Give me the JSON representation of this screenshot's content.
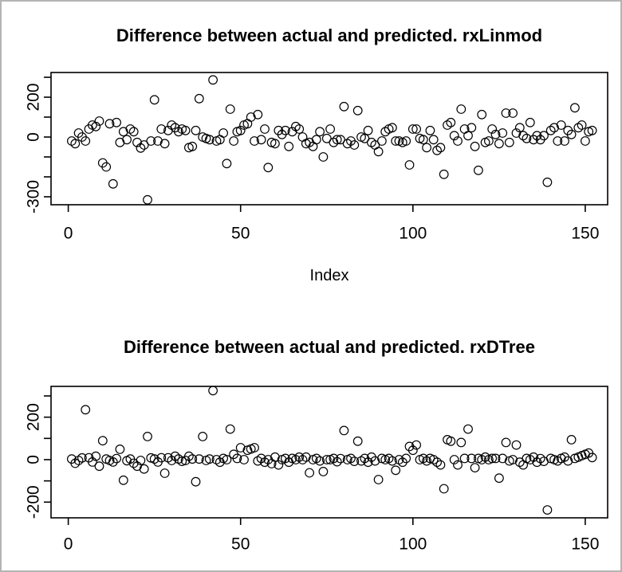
{
  "frame": {
    "background": "#ffffff",
    "border_color": "#b4b4b4"
  },
  "chart_data": [
    {
      "type": "scatter",
      "title": "Difference between actual and predicted. rxLinmod",
      "xlabel": "Index",
      "ylabel": "",
      "marker": "open-circle",
      "marker_color": "#000000",
      "grid": false,
      "x_ticks": [
        0,
        50,
        100,
        150
      ],
      "x_tick_labels": [
        "0",
        "50",
        "100",
        "150"
      ],
      "y_ticks": [
        300,
        200,
        100,
        0,
        -100,
        -200,
        -300
      ],
      "y_tick_labels": [
        "",
        "200",
        "",
        "0",
        "",
        "",
        "-300"
      ],
      "xlim": [
        -5,
        156.5
      ],
      "ylim": [
        -340,
        324
      ],
      "points": [
        [
          1,
          -20
        ],
        [
          2,
          -33
        ],
        [
          3,
          20
        ],
        [
          4,
          0
        ],
        [
          5,
          -20
        ],
        [
          6,
          40
        ],
        [
          7,
          60
        ],
        [
          8,
          53
        ],
        [
          9,
          80
        ],
        [
          10,
          -130
        ],
        [
          11,
          -150
        ],
        [
          12,
          67
        ],
        [
          13,
          -235
        ],
        [
          14,
          73
        ],
        [
          15,
          -27
        ],
        [
          16,
          27
        ],
        [
          17,
          -13
        ],
        [
          18,
          40
        ],
        [
          19,
          27
        ],
        [
          20,
          -27
        ],
        [
          21,
          -55
        ],
        [
          22,
          -40
        ],
        [
          23,
          -315
        ],
        [
          24,
          -20
        ],
        [
          25,
          187
        ],
        [
          26,
          -20
        ],
        [
          27,
          40
        ],
        [
          28,
          -33
        ],
        [
          29,
          33
        ],
        [
          30,
          60
        ],
        [
          31,
          47
        ],
        [
          32,
          27
        ],
        [
          33,
          40
        ],
        [
          34,
          33
        ],
        [
          35,
          -53
        ],
        [
          36,
          -47
        ],
        [
          37,
          33
        ],
        [
          38,
          193
        ],
        [
          39,
          0
        ],
        [
          40,
          -7
        ],
        [
          41,
          -13
        ],
        [
          42,
          287
        ],
        [
          43,
          -20
        ],
        [
          44,
          -13
        ],
        [
          45,
          20
        ],
        [
          46,
          -133
        ],
        [
          47,
          140
        ],
        [
          48,
          -20
        ],
        [
          49,
          27
        ],
        [
          50,
          33
        ],
        [
          51,
          60
        ],
        [
          52,
          67
        ],
        [
          53,
          100
        ],
        [
          54,
          -20
        ],
        [
          55,
          113
        ],
        [
          56,
          -13
        ],
        [
          57,
          40
        ],
        [
          58,
          -153
        ],
        [
          59,
          -27
        ],
        [
          60,
          -33
        ],
        [
          61,
          33
        ],
        [
          62,
          13
        ],
        [
          63,
          33
        ],
        [
          64,
          -47
        ],
        [
          65,
          27
        ],
        [
          66,
          53
        ],
        [
          67,
          40
        ],
        [
          68,
          0
        ],
        [
          69,
          -33
        ],
        [
          70,
          -27
        ],
        [
          71,
          -47
        ],
        [
          72,
          -13
        ],
        [
          73,
          27
        ],
        [
          74,
          -100
        ],
        [
          75,
          -7
        ],
        [
          76,
          40
        ],
        [
          77,
          -27
        ],
        [
          78,
          -13
        ],
        [
          79,
          -13
        ],
        [
          80,
          153
        ],
        [
          81,
          -33
        ],
        [
          82,
          -20
        ],
        [
          83,
          -40
        ],
        [
          84,
          133
        ],
        [
          85,
          0
        ],
        [
          86,
          -7
        ],
        [
          87,
          33
        ],
        [
          88,
          -27
        ],
        [
          89,
          -40
        ],
        [
          90,
          -73
        ],
        [
          91,
          -20
        ],
        [
          92,
          27
        ],
        [
          93,
          40
        ],
        [
          94,
          47
        ],
        [
          95,
          -20
        ],
        [
          96,
          -20
        ],
        [
          97,
          -27
        ],
        [
          98,
          -20
        ],
        [
          99,
          -140
        ],
        [
          100,
          40
        ],
        [
          101,
          40
        ],
        [
          102,
          -7
        ],
        [
          103,
          -13
        ],
        [
          104,
          -53
        ],
        [
          105,
          33
        ],
        [
          106,
          -13
        ],
        [
          107,
          -67
        ],
        [
          108,
          -53
        ],
        [
          109,
          -187
        ],
        [
          110,
          60
        ],
        [
          111,
          73
        ],
        [
          112,
          7
        ],
        [
          113,
          -20
        ],
        [
          114,
          140
        ],
        [
          115,
          40
        ],
        [
          116,
          7
        ],
        [
          117,
          47
        ],
        [
          118,
          -47
        ],
        [
          119,
          -167
        ],
        [
          120,
          113
        ],
        [
          121,
          -27
        ],
        [
          122,
          -20
        ],
        [
          123,
          40
        ],
        [
          124,
          13
        ],
        [
          125,
          -33
        ],
        [
          126,
          20
        ],
        [
          127,
          120
        ],
        [
          128,
          -27
        ],
        [
          129,
          120
        ],
        [
          130,
          20
        ],
        [
          131,
          47
        ],
        [
          132,
          7
        ],
        [
          133,
          -7
        ],
        [
          134,
          73
        ],
        [
          135,
          -13
        ],
        [
          136,
          7
        ],
        [
          137,
          -13
        ],
        [
          138,
          7
        ],
        [
          139,
          -227
        ],
        [
          140,
          33
        ],
        [
          141,
          47
        ],
        [
          142,
          -20
        ],
        [
          143,
          60
        ],
        [
          144,
          -20
        ],
        [
          145,
          33
        ],
        [
          146,
          13
        ],
        [
          147,
          147
        ],
        [
          148,
          47
        ],
        [
          149,
          60
        ],
        [
          150,
          -20
        ],
        [
          151,
          27
        ],
        [
          152,
          33
        ]
      ]
    },
    {
      "type": "scatter",
      "title": "Difference between actual and predicted. rxDTree",
      "xlabel": "",
      "ylabel": "",
      "marker": "open-circle",
      "marker_color": "#000000",
      "grid": false,
      "x_ticks": [
        0,
        50,
        100,
        150
      ],
      "x_tick_labels": [
        "0",
        "50",
        "100",
        "150"
      ],
      "y_ticks": [
        300,
        200,
        100,
        0,
        -100,
        -200
      ],
      "y_tick_labels": [
        "",
        "200",
        "",
        "0",
        "",
        "-200"
      ],
      "xlim": [
        -5,
        156.5
      ],
      "ylim": [
        -274,
        345
      ],
      "points": [
        [
          1,
          3
        ],
        [
          2,
          -17
        ],
        [
          3,
          -4
        ],
        [
          4,
          8
        ],
        [
          5,
          235
        ],
        [
          6,
          9
        ],
        [
          7,
          -11
        ],
        [
          8,
          16
        ],
        [
          9,
          -31
        ],
        [
          10,
          89
        ],
        [
          11,
          3
        ],
        [
          12,
          -4
        ],
        [
          13,
          -11
        ],
        [
          14,
          5
        ],
        [
          15,
          49
        ],
        [
          16,
          -97
        ],
        [
          17,
          -5
        ],
        [
          18,
          3
        ],
        [
          19,
          -17
        ],
        [
          20,
          -31
        ],
        [
          21,
          -4
        ],
        [
          22,
          -44
        ],
        [
          23,
          109
        ],
        [
          24,
          8
        ],
        [
          25,
          3
        ],
        [
          26,
          -11
        ],
        [
          27,
          9
        ],
        [
          28,
          -64
        ],
        [
          29,
          9
        ],
        [
          30,
          -4
        ],
        [
          31,
          16
        ],
        [
          32,
          3
        ],
        [
          33,
          -8
        ],
        [
          34,
          -4
        ],
        [
          35,
          16
        ],
        [
          36,
          3
        ],
        [
          37,
          -104
        ],
        [
          38,
          3
        ],
        [
          39,
          109
        ],
        [
          40,
          -4
        ],
        [
          41,
          3
        ],
        [
          42,
          325
        ],
        [
          43,
          0
        ],
        [
          44,
          -12
        ],
        [
          45,
          6
        ],
        [
          46,
          0
        ],
        [
          47,
          144
        ],
        [
          48,
          25
        ],
        [
          49,
          6
        ],
        [
          50,
          56
        ],
        [
          51,
          0
        ],
        [
          52,
          44
        ],
        [
          53,
          50
        ],
        [
          54,
          56
        ],
        [
          55,
          -6
        ],
        [
          56,
          6
        ],
        [
          57,
          -12
        ],
        [
          58,
          0
        ],
        [
          59,
          -19
        ],
        [
          60,
          12
        ],
        [
          61,
          -25
        ],
        [
          62,
          0
        ],
        [
          63,
          6
        ],
        [
          64,
          -12
        ],
        [
          65,
          6
        ],
        [
          66,
          0
        ],
        [
          67,
          12
        ],
        [
          68,
          0
        ],
        [
          69,
          12
        ],
        [
          70,
          -62
        ],
        [
          71,
          0
        ],
        [
          72,
          6
        ],
        [
          73,
          -6
        ],
        [
          74,
          -56
        ],
        [
          75,
          0
        ],
        [
          76,
          0
        ],
        [
          77,
          6
        ],
        [
          78,
          -10
        ],
        [
          79,
          5
        ],
        [
          80,
          137
        ],
        [
          81,
          0
        ],
        [
          82,
          6
        ],
        [
          83,
          -8
        ],
        [
          84,
          87
        ],
        [
          85,
          -6
        ],
        [
          86,
          6
        ],
        [
          87,
          -12
        ],
        [
          88,
          12
        ],
        [
          89,
          -6
        ],
        [
          90,
          -94
        ],
        [
          91,
          6
        ],
        [
          92,
          0
        ],
        [
          93,
          6
        ],
        [
          94,
          -6
        ],
        [
          95,
          -50
        ],
        [
          96,
          0
        ],
        [
          97,
          -12
        ],
        [
          98,
          6
        ],
        [
          99,
          62
        ],
        [
          100,
          44
        ],
        [
          101,
          69
        ],
        [
          102,
          0
        ],
        [
          103,
          6
        ],
        [
          104,
          -6
        ],
        [
          105,
          6
        ],
        [
          106,
          0
        ],
        [
          107,
          -12
        ],
        [
          108,
          -25
        ],
        [
          109,
          -137
        ],
        [
          110,
          94
        ],
        [
          111,
          87
        ],
        [
          112,
          0
        ],
        [
          113,
          -25
        ],
        [
          114,
          81
        ],
        [
          115,
          6
        ],
        [
          116,
          144
        ],
        [
          117,
          6
        ],
        [
          118,
          -38
        ],
        [
          119,
          6
        ],
        [
          120,
          0
        ],
        [
          121,
          12
        ],
        [
          122,
          0
        ],
        [
          123,
          6
        ],
        [
          124,
          6
        ],
        [
          125,
          -87
        ],
        [
          126,
          6
        ],
        [
          127,
          81
        ],
        [
          128,
          -6
        ],
        [
          129,
          0
        ],
        [
          130,
          69
        ],
        [
          131,
          -12
        ],
        [
          132,
          -25
        ],
        [
          133,
          6
        ],
        [
          134,
          0
        ],
        [
          135,
          12
        ],
        [
          136,
          -12
        ],
        [
          137,
          5
        ],
        [
          138,
          -8
        ],
        [
          139,
          -237
        ],
        [
          140,
          6
        ],
        [
          141,
          0
        ],
        [
          142,
          -6
        ],
        [
          143,
          6
        ],
        [
          144,
          12
        ],
        [
          145,
          -6
        ],
        [
          146,
          94
        ],
        [
          147,
          6
        ],
        [
          148,
          12
        ],
        [
          149,
          19
        ],
        [
          150,
          25
        ],
        [
          151,
          31
        ],
        [
          152,
          10
        ]
      ]
    }
  ]
}
